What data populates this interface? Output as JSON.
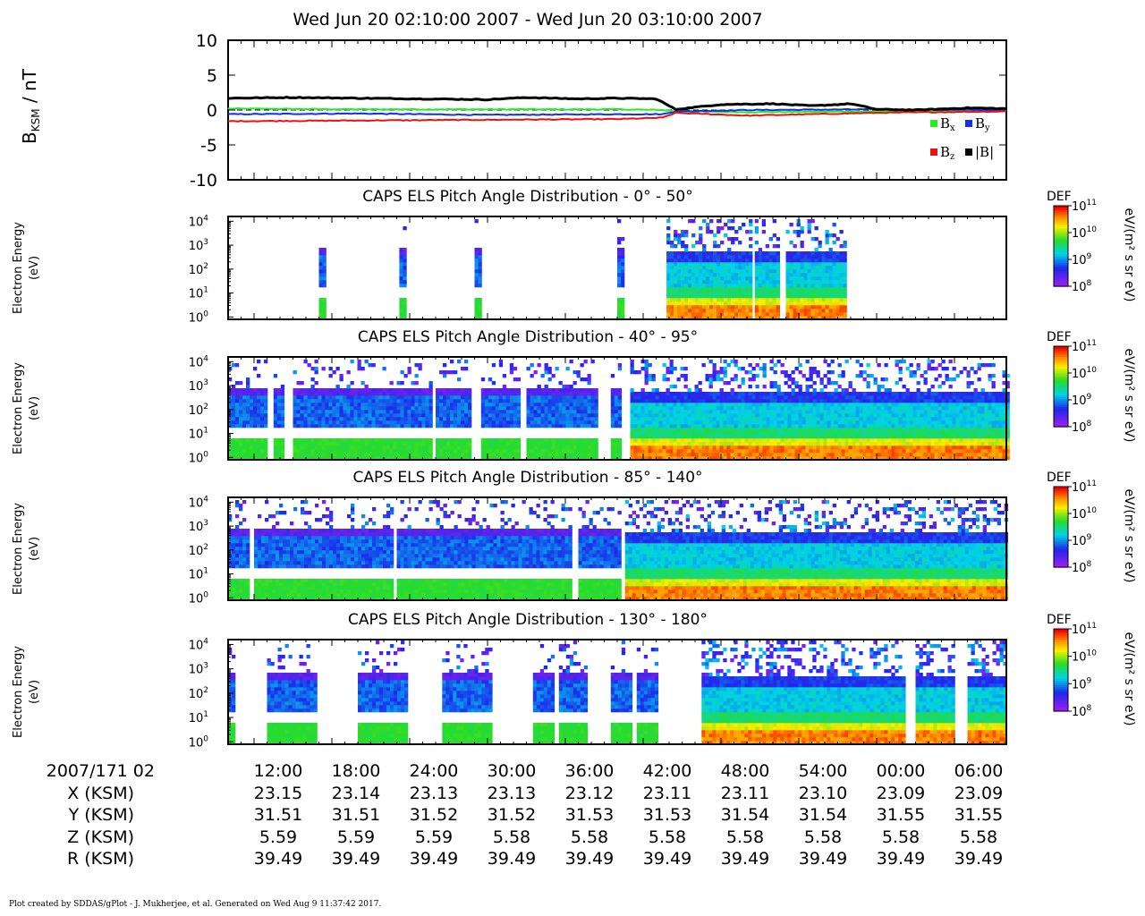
{
  "title": "Wed Jun 20 02:10:00 2007 - Wed Jun 20 03:10:00 2007",
  "footer": "Plot created by SDDAS/gPlot - J. Mukherjee, et al.  Generated on Wed Aug 9 11:37:42 2017.",
  "colors": {
    "bx": "#22ee22",
    "by": "#1030ee",
    "bz": "#ee1010",
    "btot": "#000000"
  },
  "chart_data": [
    {
      "type": "line",
      "ylabel_main": "B",
      "ylabel_sub": "KSM",
      "ylabel_unit": " / nT",
      "ylim": [
        -10,
        10
      ],
      "yticks": [
        "10",
        "5",
        "0",
        "-5",
        "-10"
      ],
      "xlim_minutes": [
        0,
        60
      ],
      "legend_placement": "bottom-right",
      "legend": [
        {
          "key": "bx",
          "base": "B",
          "sub": "x"
        },
        {
          "key": "by",
          "base": "B",
          "sub": "y"
        },
        {
          "key": "bz",
          "base": "B",
          "sub": "z"
        },
        {
          "key": "btot",
          "base": "|B|",
          "sub": ""
        }
      ],
      "series": [
        {
          "key": "bx",
          "x": [
            0,
            10,
            20,
            30,
            33.5,
            34.5,
            40,
            50,
            60
          ],
          "y": [
            0.2,
            0.1,
            0.1,
            0.1,
            0.0,
            -0.2,
            -0.3,
            -0.2,
            -0.1
          ]
        },
        {
          "key": "by",
          "x": [
            0,
            10,
            20,
            30,
            33.5,
            34.5,
            40,
            50,
            60
          ],
          "y": [
            -0.6,
            -0.5,
            -0.7,
            -0.6,
            -0.6,
            -0.2,
            0.0,
            0.1,
            0.0
          ]
        },
        {
          "key": "bz",
          "x": [
            0,
            10,
            20,
            30,
            33.5,
            34.5,
            40,
            50,
            60
          ],
          "y": [
            -1.6,
            -1.5,
            -1.4,
            -1.3,
            -1.1,
            -0.4,
            -0.8,
            -0.4,
            -0.2
          ]
        },
        {
          "key": "btot",
          "x": [
            0,
            5,
            10,
            15,
            20,
            23,
            27,
            30,
            33,
            34.5,
            38,
            42,
            45,
            48,
            50,
            53,
            57,
            60
          ],
          "y": [
            1.7,
            1.8,
            1.7,
            1.6,
            1.5,
            1.8,
            1.6,
            1.7,
            1.6,
            0.1,
            0.8,
            0.9,
            0.6,
            0.9,
            0.1,
            0.0,
            0.3,
            0.2
          ]
        }
      ]
    },
    {
      "type": "heatmap",
      "title": "CAPS ELS Pitch Angle Distribution - 0° - 50°",
      "ylabel": [
        "Electron Energy",
        "(eV)"
      ],
      "yticks": [
        "0",
        "1",
        "2",
        "3",
        "4"
      ],
      "colorbar": {
        "label": "DEF",
        "unit": "eV/(m² s sr eV)",
        "ticks": [
          "8",
          "9",
          "10",
          "11"
        ]
      },
      "blocks": [
        [
          7,
          7.5
        ],
        [
          13.2,
          13.7
        ],
        [
          19,
          19.4
        ],
        [
          30,
          30.5
        ],
        [
          33.8,
          40.2
        ],
        [
          40.6,
          42.5
        ],
        [
          43,
          47.5
        ]
      ],
      "bg_until": 33.8
    },
    {
      "type": "heatmap",
      "title": "CAPS ELS Pitch Angle Distribution - 40° - 95°",
      "ylabel": [
        "Electron Energy",
        "(eV)"
      ],
      "yticks": [
        "0",
        "1",
        "2",
        "3",
        "4"
      ],
      "colorbar": {
        "label": "DEF",
        "unit": "eV/(m² s sr eV)",
        "ticks": [
          "8",
          "9",
          "10",
          "11"
        ]
      },
      "blocks": [
        [
          0,
          2.8
        ],
        [
          3.5,
          4.2
        ],
        [
          5,
          15.5
        ],
        [
          16,
          18.5
        ],
        [
          19.5,
          22.5
        ],
        [
          23,
          28.5
        ],
        [
          29.5,
          30.3
        ],
        [
          31,
          60
        ]
      ],
      "bg_until": 30.3
    },
    {
      "type": "heatmap",
      "title": "CAPS ELS Pitch Angle Distribution - 85° - 140°",
      "ylabel": [
        "Electron Energy",
        "(eV)"
      ],
      "yticks": [
        "0",
        "1",
        "2",
        "3",
        "4"
      ],
      "colorbar": {
        "label": "DEF",
        "unit": "eV/(m² s sr eV)",
        "ticks": [
          "8",
          "9",
          "10",
          "11"
        ]
      },
      "blocks": [
        [
          0,
          1.5
        ],
        [
          2,
          12.5
        ],
        [
          13,
          26.5
        ],
        [
          27,
          30.2
        ],
        [
          30.6,
          60
        ]
      ],
      "bg_until": 30.6
    },
    {
      "type": "heatmap",
      "title": "CAPS ELS Pitch Angle Distribution - 130° - 180°",
      "ylabel": [
        "Electron Energy",
        "(eV)"
      ],
      "yticks": [
        "0",
        "1",
        "2",
        "3",
        "4"
      ],
      "colorbar": {
        "label": "DEF",
        "unit": "eV/(m² s sr eV)",
        "ticks": [
          "8",
          "9",
          "10",
          "11"
        ]
      },
      "blocks": [
        [
          0,
          0.3
        ],
        [
          3,
          6.8
        ],
        [
          10,
          13.8
        ],
        [
          16.5,
          20.3
        ],
        [
          23.5,
          25
        ],
        [
          25.5,
          27.5
        ],
        [
          29.5,
          31
        ],
        [
          31.5,
          33
        ],
        [
          36.5,
          52
        ],
        [
          53,
          56
        ],
        [
          57,
          60
        ]
      ],
      "bg_until": 36.5
    }
  ],
  "time_axis": {
    "row_labels": [
      "2007/171 02",
      "X (KSM)",
      "Y (KSM)",
      "Z (KSM)",
      "R (KSM)"
    ],
    "columns": [
      {
        "t": 2,
        "time": "12:00",
        "x": "23.15",
        "y": "31.51",
        "z": "5.59",
        "r": "39.49"
      },
      {
        "t": 8,
        "time": "18:00",
        "x": "23.14",
        "y": "31.51",
        "z": "5.59",
        "r": "39.49"
      },
      {
        "t": 14,
        "time": "24:00",
        "x": "23.13",
        "y": "31.52",
        "z": "5.59",
        "r": "39.49"
      },
      {
        "t": 20,
        "time": "30:00",
        "x": "23.13",
        "y": "31.52",
        "z": "5.58",
        "r": "39.49"
      },
      {
        "t": 26,
        "time": "36:00",
        "x": "23.12",
        "y": "31.53",
        "z": "5.58",
        "r": "39.49"
      },
      {
        "t": 32,
        "time": "42:00",
        "x": "23.11",
        "y": "31.53",
        "z": "5.58",
        "r": "39.49"
      },
      {
        "t": 38,
        "time": "48:00",
        "x": "23.11",
        "y": "31.54",
        "z": "5.58",
        "r": "39.49"
      },
      {
        "t": 44,
        "time": "54:00",
        "x": "23.10",
        "y": "31.54",
        "z": "5.58",
        "r": "39.49"
      },
      {
        "t": 50,
        "time": "00:00",
        "x": "23.09",
        "y": "31.55",
        "z": "5.58",
        "r": "39.49"
      },
      {
        "t": 56,
        "time": "06:00",
        "x": "23.09",
        "y": "31.55",
        "z": "5.58",
        "r": "39.49"
      }
    ]
  }
}
